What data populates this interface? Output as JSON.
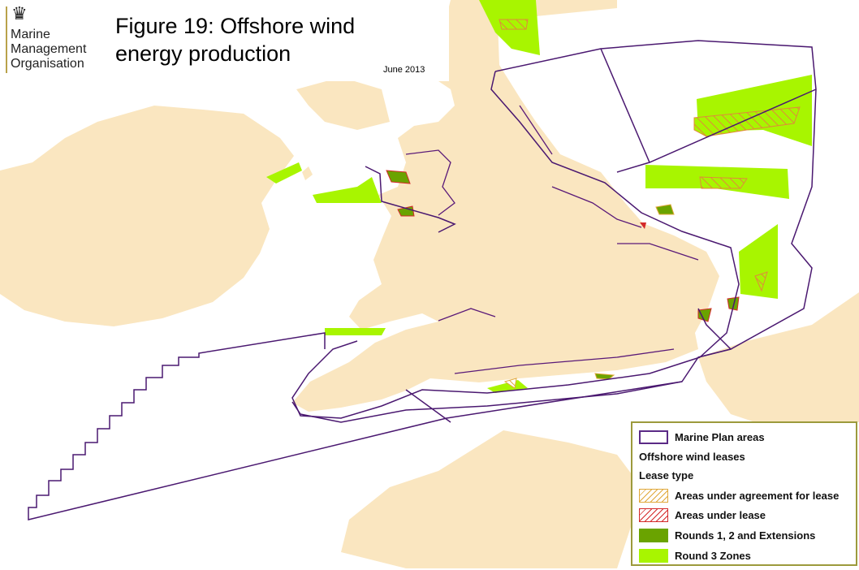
{
  "header": {
    "organisation": "Marine Management Organisation",
    "org_lines": [
      "Marine",
      "Management",
      "Organisation"
    ],
    "title_lines": [
      "Figure 19: Offshore wind",
      "energy production"
    ],
    "date": "June 2013"
  },
  "legend": {
    "items": [
      {
        "label": "Marine Plan areas",
        "symbol": "outline",
        "color": "#5b2a86"
      },
      {
        "label": "Offshore wind leases",
        "symbol": "heading"
      },
      {
        "label": "Lease type",
        "symbol": "heading"
      },
      {
        "label": "Areas under agreement for lease",
        "symbol": "hatch",
        "color": "#e0a83a"
      },
      {
        "label": "Areas under lease",
        "symbol": "hatch",
        "color": "#d42a2a"
      },
      {
        "label": "Rounds 1, 2 and Extensions",
        "symbol": "fill",
        "color": "#6aa300"
      },
      {
        "label": "Round 3 Zones",
        "symbol": "fill",
        "color": "#a8f500"
      }
    ]
  },
  "colors": {
    "land": "#fae6c0",
    "sea": "#ffffff",
    "plan_boundary": "#4a1870",
    "round3": "#a8f500",
    "round12": "#6aa300"
  }
}
